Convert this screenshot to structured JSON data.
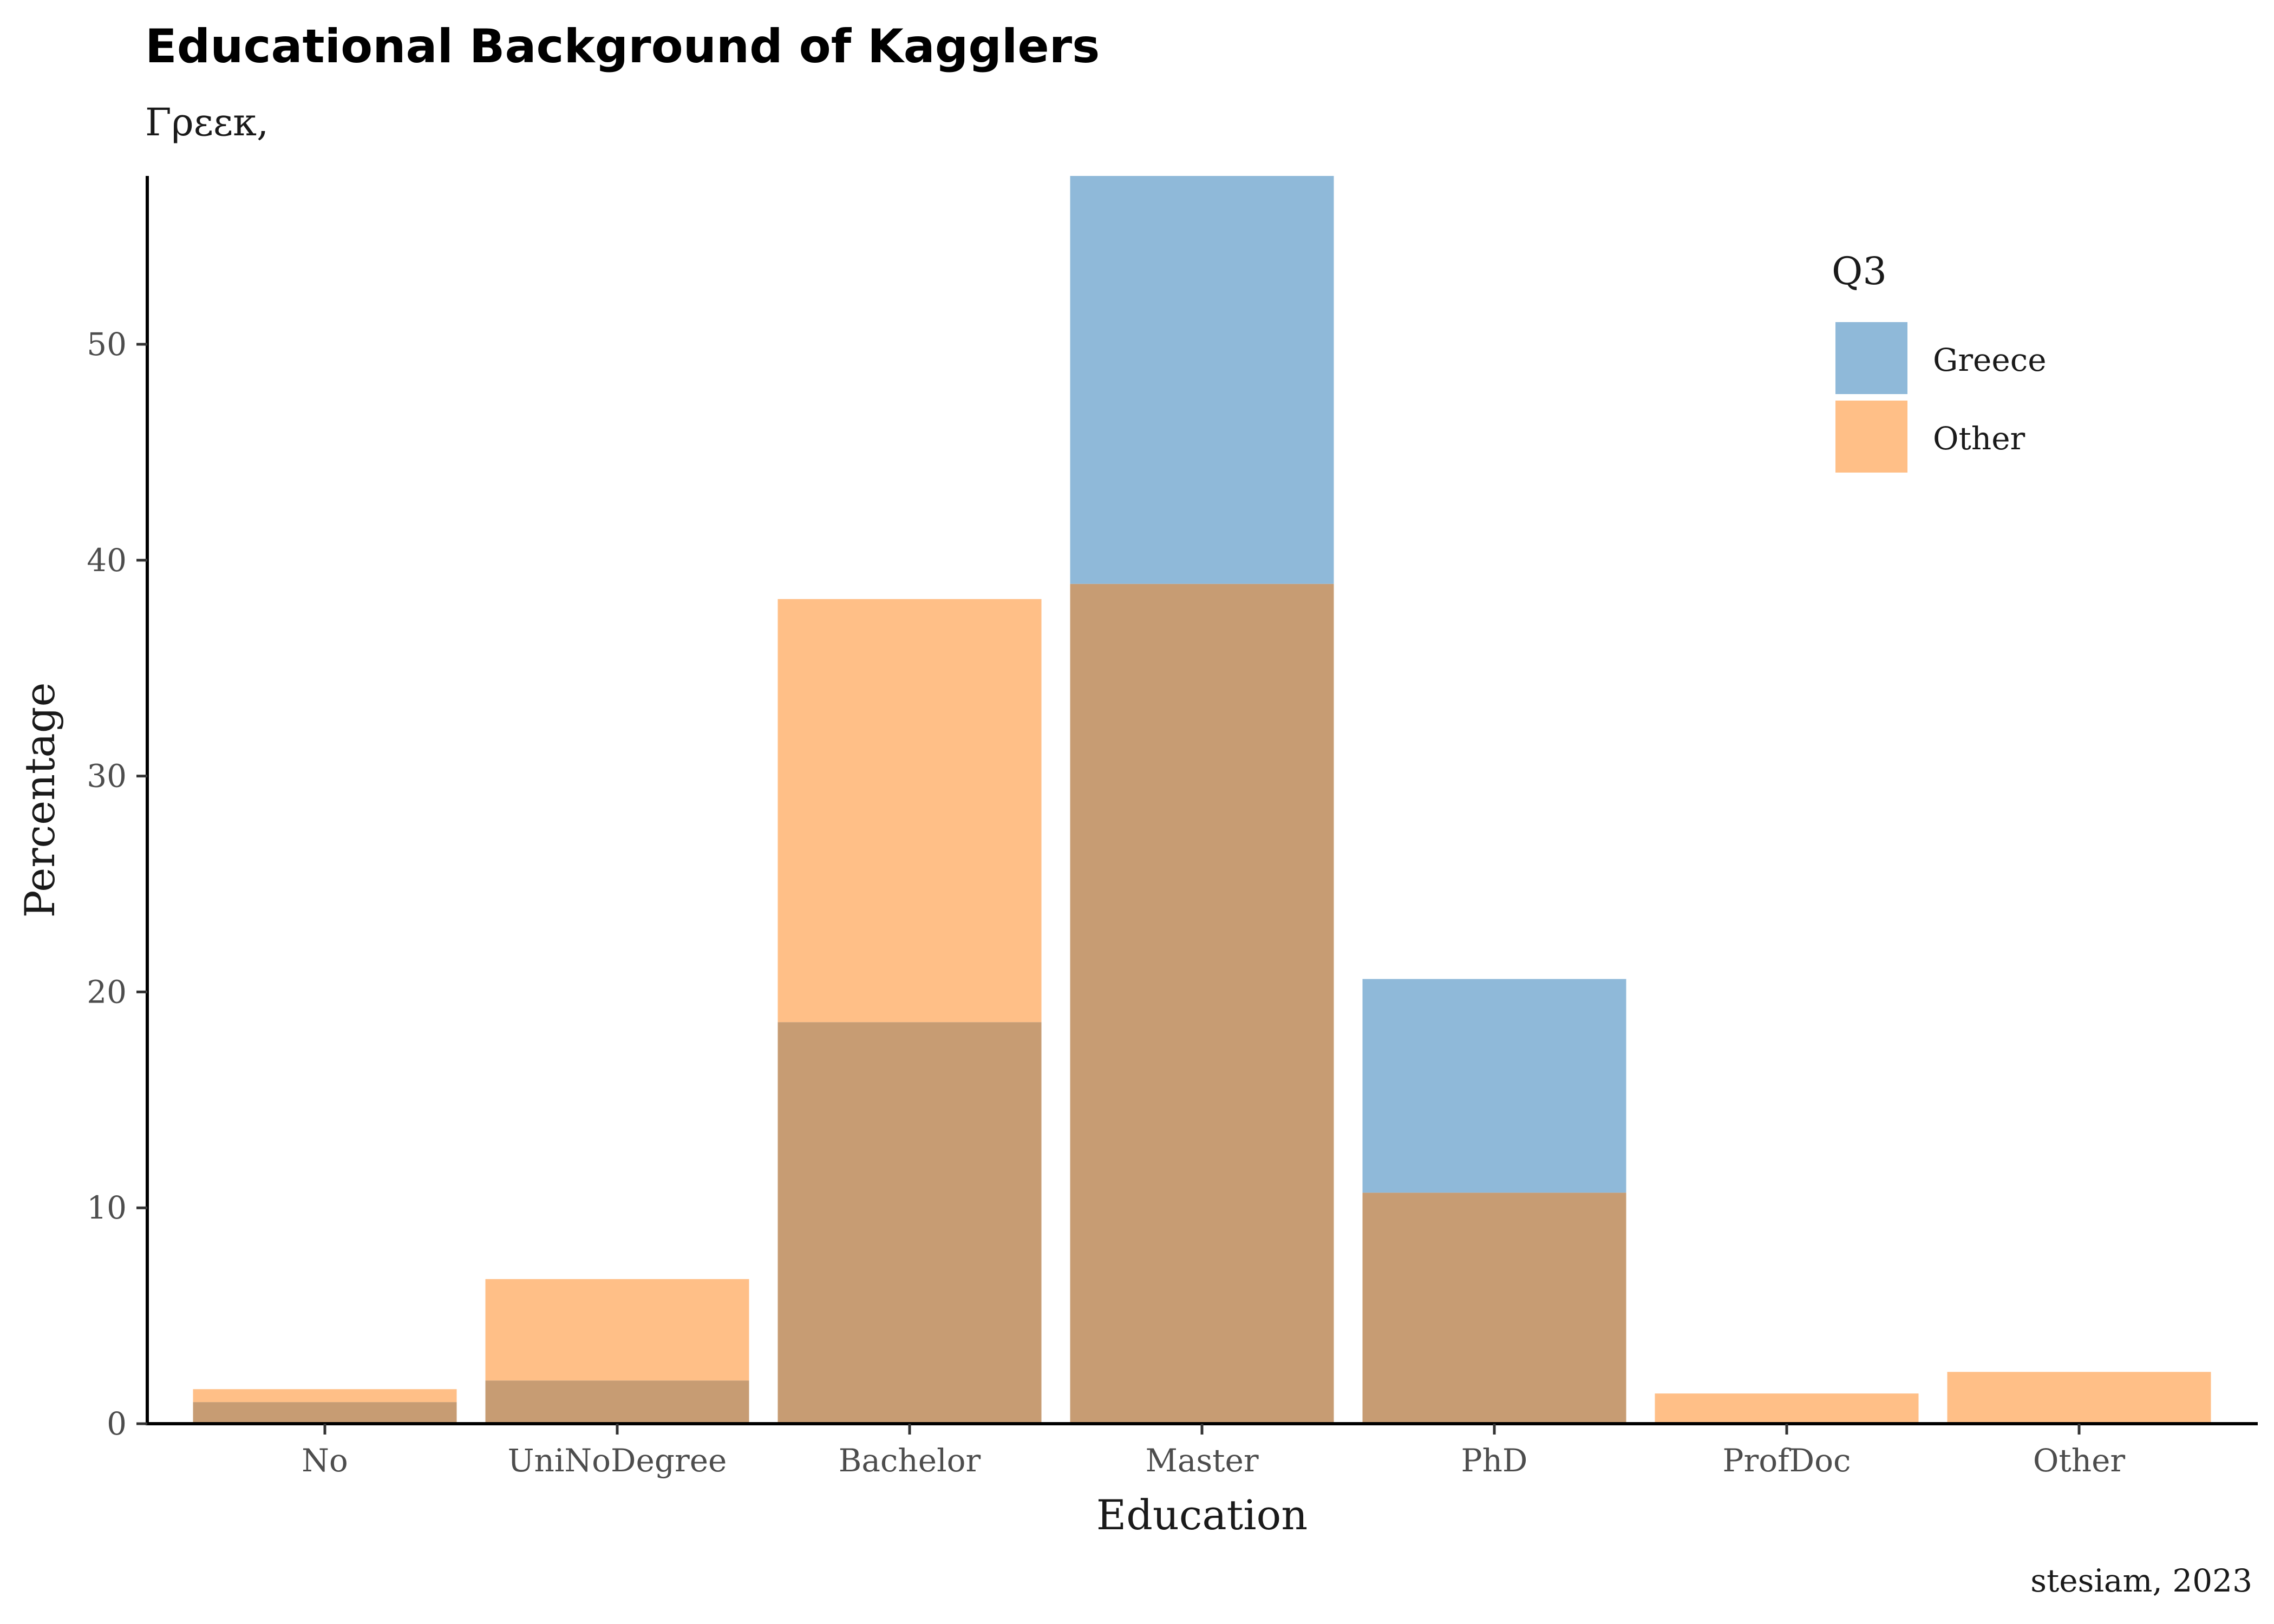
{
  "chart_data": {
    "type": "bar",
    "title": "Educational Background of Kagglers",
    "subtitle": "Γρεεκ,",
    "xlabel": "Education",
    "ylabel": "Percentage",
    "caption": "stesiam, 2023",
    "categories": [
      "No",
      "UniNoDegree",
      "Bachelor",
      "Master",
      "PhD",
      "ProfDoc",
      "Other"
    ],
    "series": [
      {
        "name": "Greece",
        "color": "#8FB9D9",
        "values": [
          1.0,
          2.0,
          18.6,
          57.8,
          20.6,
          0,
          0
        ]
      },
      {
        "name": "Other",
        "color": "#FFBF87",
        "values": [
          1.6,
          6.7,
          38.2,
          38.9,
          10.7,
          1.4,
          2.4
        ]
      }
    ],
    "overlap_color": "#C79C73",
    "ylim": [
      0,
      57.8
    ],
    "yticks": [
      0,
      10,
      20,
      30,
      40,
      50
    ],
    "legend": {
      "title": "Q3",
      "position": "top-right"
    },
    "grid": false
  }
}
